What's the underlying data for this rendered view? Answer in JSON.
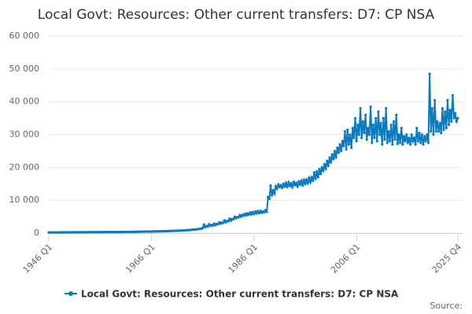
{
  "chart_data": {
    "type": "line",
    "title": "Local Govt: Resources: Other current transfers: D7: CP NSA",
    "source": "Source:",
    "categories": [
      "1946 Q1",
      null,
      null,
      null,
      null,
      null,
      null,
      null,
      null,
      null,
      null,
      null,
      null,
      null,
      null,
      null,
      null,
      null,
      null,
      null,
      null,
      null,
      null,
      null,
      null,
      null,
      null,
      null,
      null,
      null,
      null,
      null,
      null,
      null,
      null,
      null,
      null,
      null,
      null,
      null,
      null,
      null,
      null,
      null,
      null,
      null,
      null,
      null,
      null,
      null,
      null,
      null,
      null,
      null,
      null,
      null,
      null,
      null,
      null,
      null,
      null,
      null,
      null,
      null,
      null,
      null,
      null,
      null,
      null,
      null,
      null,
      null,
      null,
      null,
      null,
      null,
      null,
      null,
      null,
      null,
      "1966 Q1",
      null,
      null,
      null,
      null,
      null,
      null,
      null,
      null,
      null,
      null,
      null,
      null,
      null,
      null,
      null,
      null,
      null,
      null,
      null,
      null,
      null,
      null,
      null,
      null,
      null,
      null,
      null,
      null,
      null,
      null,
      null,
      null,
      null,
      null,
      null,
      null,
      null,
      null,
      null,
      null,
      null,
      null,
      null,
      null,
      null,
      null,
      null,
      null,
      null,
      null,
      null,
      null,
      null,
      null,
      null,
      null,
      null,
      null,
      null,
      null,
      null,
      null,
      null,
      null,
      null,
      null,
      null,
      null,
      null,
      null,
      null,
      null,
      null,
      null,
      null,
      null,
      null,
      null,
      null,
      "1986 Q1",
      null,
      null,
      null,
      null,
      null,
      null,
      null,
      null,
      null,
      null,
      null,
      null,
      null,
      null,
      null,
      null,
      null,
      null,
      null,
      null,
      null,
      null,
      null,
      null,
      null,
      null,
      null,
      null,
      null,
      null,
      null,
      null,
      null,
      null,
      null,
      null,
      null,
      null,
      null,
      null,
      null,
      null,
      null,
      null,
      null,
      null,
      null,
      null,
      null,
      null,
      null,
      null,
      null,
      null,
      null,
      null,
      null,
      null,
      null,
      null,
      null,
      null,
      null,
      null,
      null,
      null,
      null,
      null,
      null,
      null,
      null,
      null,
      null,
      null,
      null,
      null,
      null,
      null,
      null,
      "2006 Q1",
      null,
      null,
      null,
      null,
      null,
      null,
      null,
      null,
      null,
      null,
      null,
      null,
      null,
      null,
      null,
      null,
      null,
      null,
      null,
      null,
      null,
      null,
      null,
      null,
      null,
      null,
      null,
      null,
      null,
      null,
      null,
      null,
      null,
      null,
      null,
      null,
      null,
      null,
      null,
      null,
      null,
      null,
      null,
      null,
      null,
      null,
      null,
      null,
      null,
      null,
      null,
      null,
      null,
      null,
      null,
      null,
      null,
      null,
      null,
      null,
      null,
      null,
      null,
      null,
      null,
      null,
      null,
      null,
      null,
      null,
      null,
      null,
      null,
      null,
      null,
      null,
      null,
      null,
      "2025 Q4"
    ],
    "series": [
      {
        "name": "Local Govt: Resources: Other current transfers: D7: CP NSA",
        "color": "#0b7bc0",
        "values": [
          200,
          210,
          205,
          215,
          220,
          225,
          220,
          230,
          230,
          235,
          232,
          240,
          240,
          245,
          242,
          250,
          250,
          255,
          252,
          260,
          260,
          265,
          262,
          270,
          270,
          275,
          272,
          280,
          280,
          285,
          282,
          290,
          290,
          295,
          292,
          300,
          300,
          305,
          302,
          310,
          310,
          315,
          312,
          320,
          320,
          325,
          322,
          330,
          330,
          335,
          332,
          340,
          340,
          345,
          342,
          350,
          350,
          360,
          355,
          365,
          370,
          380,
          375,
          385,
          390,
          400,
          395,
          410,
          420,
          430,
          425,
          440,
          450,
          460,
          455,
          470,
          480,
          490,
          485,
          500,
          510,
          520,
          515,
          530,
          540,
          550,
          545,
          560,
          570,
          590,
          580,
          600,
          620,
          640,
          630,
          660,
          680,
          700,
          690,
          720,
          740,
          760,
          750,
          790,
          820,
          850,
          840,
          880,
          900,
          950,
          930,
          1000,
          1050,
          1100,
          1080,
          1150,
          1200,
          1300,
          1250,
          1400,
          1500,
          2600,
          1800,
          2200,
          2000,
          2700,
          2200,
          2500,
          2300,
          2900,
          2400,
          2800,
          2700,
          3300,
          2900,
          3200,
          3100,
          3900,
          3300,
          3700,
          3600,
          4400,
          3800,
          4300,
          4200,
          5000,
          4500,
          4900,
          4800,
          5500,
          5000,
          5600,
          5300,
          5900,
          5400,
          6000,
          5600,
          6300,
          5700,
          6400,
          5800,
          6600,
          6000,
          6700,
          6100,
          6800,
          6200,
          6600,
          6300,
          7000,
          6500,
          11000,
          10500,
          14500,
          11500,
          13000,
          12000,
          14300,
          13500,
          14800,
          14000,
          14600,
          13800,
          15000,
          14200,
          15300,
          14100,
          15500,
          14400,
          15200,
          14000,
          15600,
          14600,
          15300,
          14200,
          15700,
          14800,
          16000,
          14500,
          16200,
          15000,
          16300,
          15200,
          16800,
          15500,
          17000,
          16000,
          18500,
          16500,
          18800,
          17000,
          19500,
          18000,
          20000,
          19000,
          21000,
          19500,
          22000,
          20500,
          23000,
          21500,
          24000,
          22500,
          25000,
          23000,
          26000,
          24500,
          27000,
          25000,
          28000,
          26500,
          31000,
          25500,
          31500,
          27000,
          30000,
          26000,
          32000,
          29000,
          35000,
          28000,
          33000,
          30000,
          38000,
          29000,
          34000,
          30500,
          36000,
          28500,
          32000,
          30000,
          38500,
          27500,
          33000,
          29000,
          35000,
          28000,
          37000,
          30000,
          33500,
          27000,
          35000,
          28500,
          38000,
          27500,
          31000,
          28000,
          33000,
          27000,
          34000,
          28500,
          36000,
          27200,
          30000,
          27500,
          32000,
          27000,
          29500,
          28000,
          30000,
          27500,
          29000,
          27000,
          30000,
          28000,
          29000,
          27000,
          32000,
          28000,
          30500,
          27500,
          30000,
          27000,
          29500,
          28000,
          30000,
          27500,
          48500,
          31000,
          38000,
          30000,
          40500,
          31000,
          34000,
          31000,
          33500,
          30500,
          38000,
          31500,
          37000,
          32000,
          40500,
          33000,
          37500,
          34000,
          42000,
          35000,
          36500,
          34000,
          35000
        ]
      }
    ],
    "ylim": [
      0,
      60000
    ],
    "yticks": [
      {
        "value": 0,
        "label": "0"
      },
      {
        "value": 10000,
        "label": "10 000"
      },
      {
        "value": 20000,
        "label": "20 000"
      },
      {
        "value": 30000,
        "label": "30 000"
      },
      {
        "value": 40000,
        "label": "40 000"
      },
      {
        "value": 50000,
        "label": "50 000"
      },
      {
        "value": 60000,
        "label": "60 000"
      }
    ],
    "grid": true
  }
}
